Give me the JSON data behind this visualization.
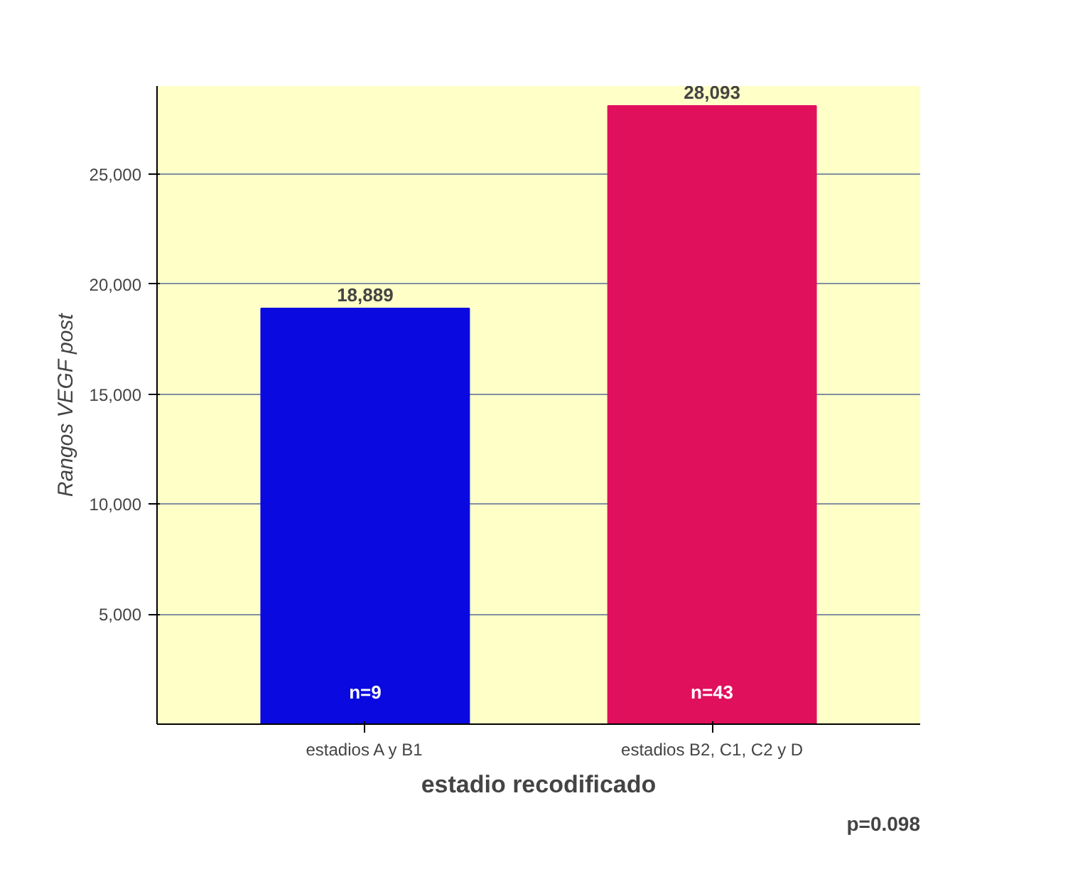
{
  "chart_data": {
    "type": "bar",
    "ylabel": "Rangos VEGF post",
    "xlabel": "estadio recodificado",
    "categories": [
      "estadios A y B1",
      "estadios B2, C1, C2 y D"
    ],
    "values": [
      18889,
      28093
    ],
    "colors": [
      "#0a0ae0",
      "#e0105c"
    ],
    "value_labels": [
      "18,889",
      "28,093"
    ],
    "ylim": [
      0,
      29000
    ],
    "yticks": [
      {
        "value": 5000,
        "label": "5,000"
      },
      {
        "value": 10000,
        "label": "10,000"
      },
      {
        "value": 15000,
        "label": "15,000"
      },
      {
        "value": 20000,
        "label": "20,000"
      },
      {
        "value": 25000,
        "label": "25,000"
      }
    ],
    "grid": "y",
    "annotations": [
      "n=9",
      "n=43",
      "p=0.098"
    ]
  }
}
